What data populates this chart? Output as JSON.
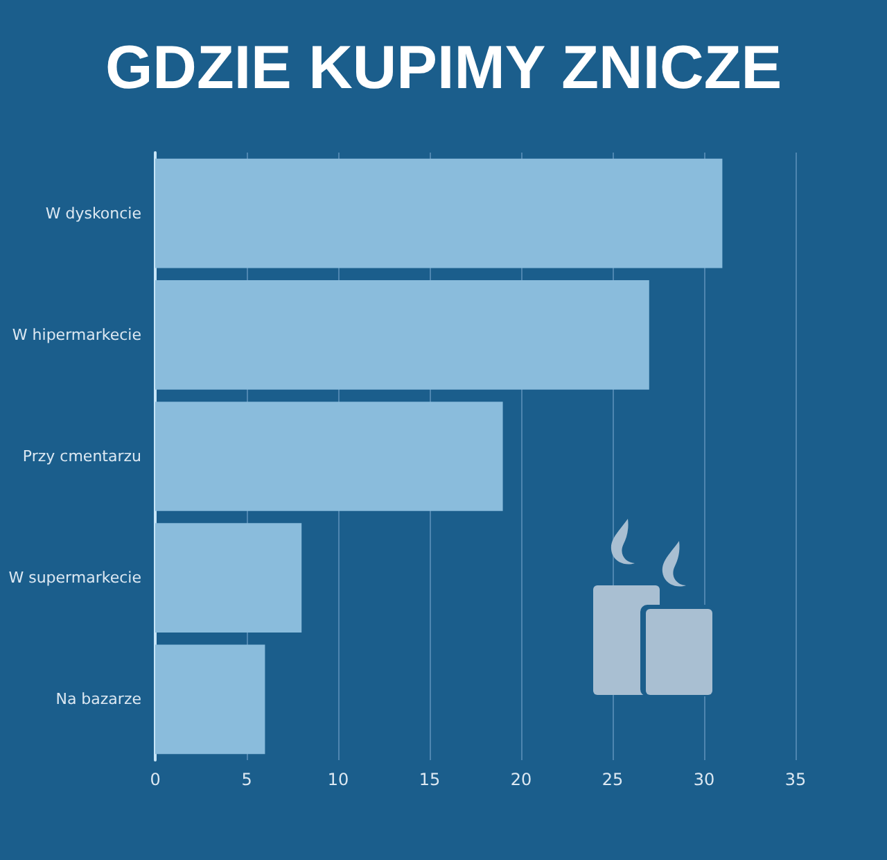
{
  "chart_data": {
    "type": "bar",
    "orientation": "horizontal",
    "title": "GDZIE KUPIMY ZNICZE",
    "categories": [
      "W dyskoncie",
      "W hipermarkecie",
      "Przy cmentarzu",
      "W supermarkecie",
      "Na bazarze"
    ],
    "values": [
      31,
      27,
      19,
      8,
      6
    ],
    "color": "#8abcdc",
    "xlim": [
      0,
      35
    ],
    "xticks": [
      0,
      5,
      10,
      15,
      20,
      25,
      30,
      35
    ],
    "grid": "x"
  }
}
